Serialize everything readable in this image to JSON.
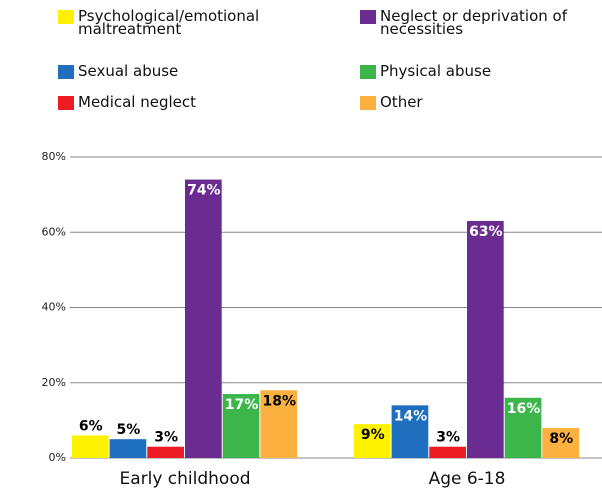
{
  "chart_data": {
    "type": "bar",
    "categories": [
      "Early childhood",
      "Age 6-18"
    ],
    "series": [
      {
        "name": "Psychological/emotional maltreatment",
        "color": "#fff200",
        "values": [
          6,
          9
        ],
        "value_labels": [
          "6%",
          "9%"
        ]
      },
      {
        "name": "Sexual abuse",
        "color": "#1f6fbf",
        "values": [
          5,
          14
        ],
        "value_labels": [
          "5%",
          "14%"
        ]
      },
      {
        "name": "Medical neglect",
        "color": "#ed1c24",
        "values": [
          3,
          3
        ],
        "value_labels": [
          "3%",
          "3%"
        ]
      },
      {
        "name": "Neglect or deprivation of necessities",
        "color": "#6a2c91",
        "values": [
          74,
          63
        ],
        "value_labels": [
          "74%",
          "63%"
        ]
      },
      {
        "name": "Physical abuse",
        "color": "#3cb54a",
        "values": [
          17,
          16
        ],
        "value_labels": [
          "17%",
          "16%"
        ]
      },
      {
        "name": "Other",
        "color": "#fbb040",
        "values": [
          18,
          8
        ],
        "value_labels": [
          "18%",
          "8%"
        ]
      }
    ],
    "ylim": [
      0,
      80
    ],
    "yticks": [
      {
        "value": 0,
        "label": "0%"
      },
      {
        "value": 20,
        "label": "20%"
      },
      {
        "value": 40,
        "label": "40%"
      },
      {
        "value": 60,
        "label": "60%"
      },
      {
        "value": 80,
        "label": "80%"
      }
    ],
    "grid": true
  }
}
